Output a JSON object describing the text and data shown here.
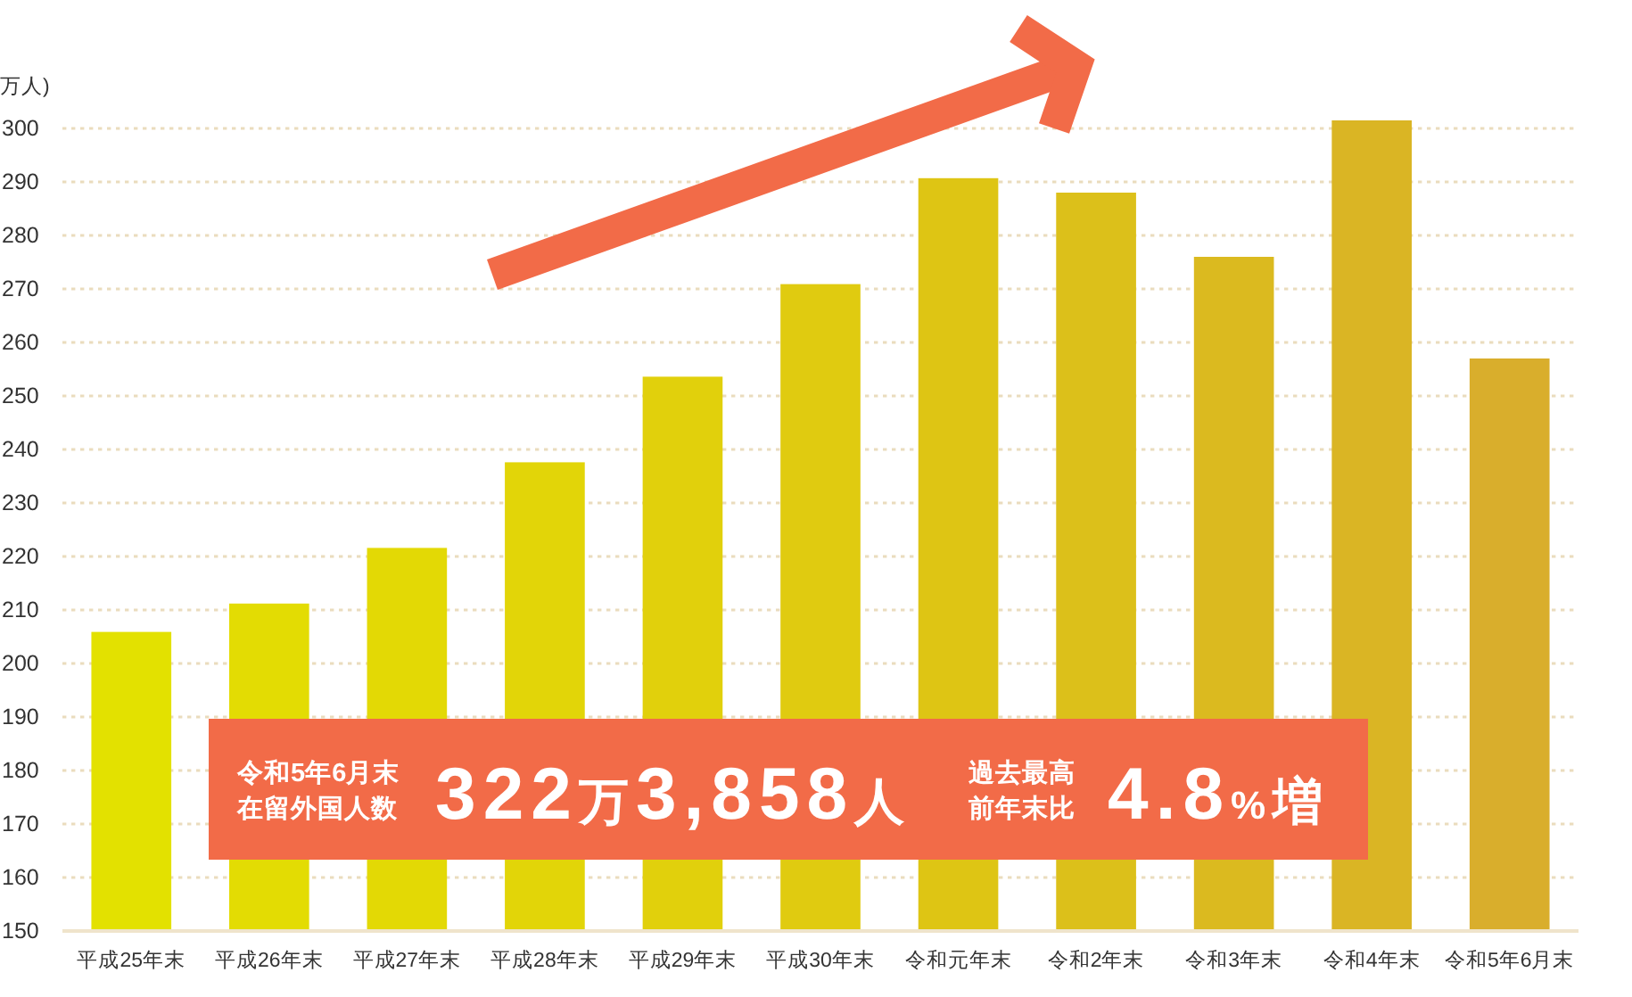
{
  "chart_data": {
    "type": "bar",
    "ylabel": "万人)",
    "categories": [
      "平成25年末",
      "平成26年末",
      "平成27年末",
      "平成28年末",
      "平成29年末",
      "平成30年末",
      "令和元年末",
      "令和2年末",
      "令和3年末",
      "令和4年末",
      "令和5年6月末"
    ],
    "values": [
      205.9,
      211.2,
      221.6,
      237.6,
      253.6,
      270.9,
      290.7,
      288,
      276,
      301.5,
      257
    ],
    "colors": [
      "#e3e100",
      "#e3dc03",
      "#e3d905",
      "#e2d508",
      "#e1d00c",
      "#e0cb10",
      "#dec514",
      "#dcc01a",
      "#dbba1f",
      "#dab524",
      "#d9ae2c"
    ],
    "ylim": [
      150,
      301.5
    ],
    "yticks": [
      150,
      160,
      170,
      180,
      190,
      200,
      210,
      220,
      230,
      240,
      250,
      260,
      270,
      280,
      290,
      300
    ],
    "grid": "y",
    "annotations": [
      "令和5年6月末",
      "在留外国人数",
      "322万3,858人",
      "過去最高",
      "前年末比",
      "4.8%増"
    ]
  }
}
